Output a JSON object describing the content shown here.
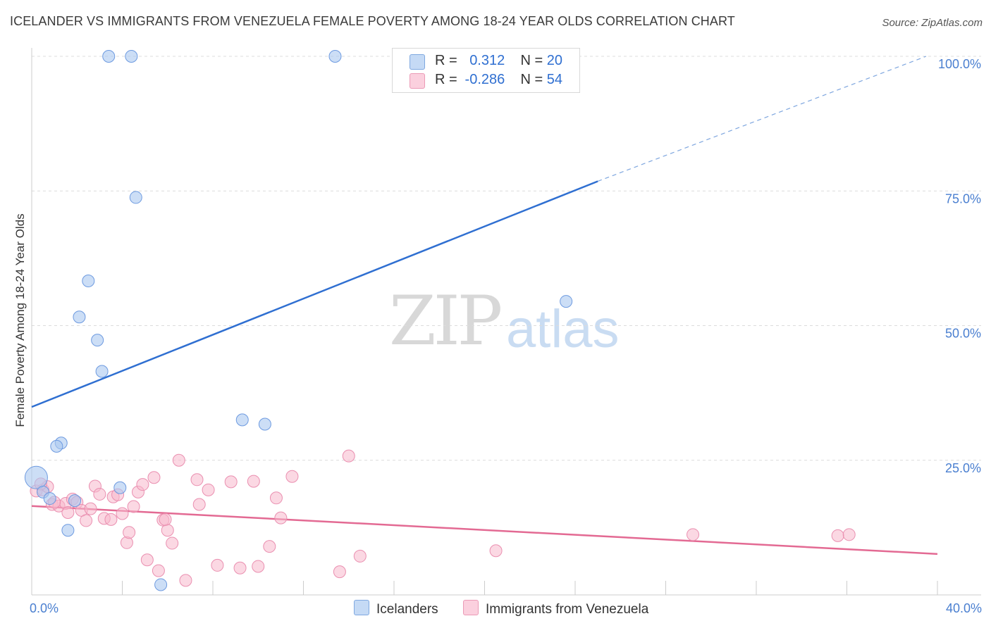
{
  "title": "ICELANDER VS IMMIGRANTS FROM VENEZUELA FEMALE POVERTY AMONG 18-24 YEAR OLDS CORRELATION CHART",
  "source": "Source: ZipAtlas.com",
  "watermark": {
    "zip": "ZIP",
    "atlas": "atlas"
  },
  "legend": {
    "r_label": "R =",
    "n_label": "N =",
    "series": [
      {
        "r": "0.312",
        "n": "20",
        "color": "#aac8f0"
      },
      {
        "r": "-0.286",
        "n": "54",
        "color": "#f7b8cc"
      }
    ]
  },
  "bottom_legend": {
    "items": [
      {
        "label": "Icelanders",
        "color": "#aac8f0"
      },
      {
        "label": "Immigrants from Venezuela",
        "color": "#f7b8cc"
      }
    ]
  },
  "chart_data": {
    "type": "scatter",
    "xlabel": "",
    "ylabel": "Female Poverty Among 18-24 Year Olds",
    "xlim": [
      0,
      40
    ],
    "ylim": [
      0,
      100
    ],
    "x_tick_labels": [
      "0.0%",
      "40.0%"
    ],
    "y_ticks": [
      25,
      50,
      75,
      100
    ],
    "y_tick_labels": [
      "25.0%",
      "50.0%",
      "75.0%",
      "100.0%"
    ],
    "grid": true,
    "series": [
      {
        "name": "Icelanders",
        "color": "#5b8fd8",
        "fill": "#aac8f0",
        "points": [
          [
            3.4,
            100
          ],
          [
            4.4,
            100
          ],
          [
            13.4,
            100
          ],
          [
            4.6,
            73.8
          ],
          [
            2.5,
            58.3
          ],
          [
            2.1,
            51.6
          ],
          [
            2.9,
            47.3
          ],
          [
            3.1,
            41.5
          ],
          [
            23.6,
            54.5
          ],
          [
            9.3,
            32.5
          ],
          [
            10.3,
            31.7
          ],
          [
            1.3,
            28.2
          ],
          [
            1.1,
            27.6
          ],
          [
            0.2,
            21.8
          ],
          [
            3.9,
            19.9
          ],
          [
            0.5,
            19.1
          ],
          [
            0.8,
            17.9
          ],
          [
            1.9,
            17.5
          ],
          [
            1.6,
            12.0
          ],
          [
            5.7,
            1.9
          ]
        ],
        "trend": {
          "x0": 0,
          "y0": 34.9,
          "x1": 25,
          "y1": 76.8,
          "x2": 39.5,
          "y2": 100
        }
      },
      {
        "name": "Immigrants from Venezuela",
        "color": "#e36a93",
        "fill": "#f7b8cc",
        "points": [
          [
            0.2,
            19.3
          ],
          [
            0.5,
            19.5
          ],
          [
            0.7,
            20.1
          ],
          [
            0.9,
            16.8
          ],
          [
            1.2,
            16.5
          ],
          [
            1.5,
            17.0
          ],
          [
            1.6,
            15.3
          ],
          [
            1.8,
            17.8
          ],
          [
            2.0,
            17.2
          ],
          [
            2.2,
            15.7
          ],
          [
            2.4,
            13.8
          ],
          [
            2.8,
            20.2
          ],
          [
            3.0,
            18.7
          ],
          [
            3.2,
            14.2
          ],
          [
            3.5,
            14.0
          ],
          [
            3.6,
            18.2
          ],
          [
            3.8,
            18.6
          ],
          [
            4.0,
            15.1
          ],
          [
            4.2,
            9.7
          ],
          [
            4.3,
            11.6
          ],
          [
            4.5,
            16.4
          ],
          [
            4.7,
            19.1
          ],
          [
            4.9,
            20.5
          ],
          [
            5.1,
            6.5
          ],
          [
            5.4,
            21.8
          ],
          [
            5.8,
            13.9
          ],
          [
            5.6,
            4.5
          ],
          [
            6.0,
            12.0
          ],
          [
            6.2,
            9.6
          ],
          [
            6.5,
            25.0
          ],
          [
            6.8,
            2.7
          ],
          [
            7.3,
            21.4
          ],
          [
            7.4,
            16.8
          ],
          [
            7.8,
            19.5
          ],
          [
            8.2,
            5.5
          ],
          [
            8.8,
            21.0
          ],
          [
            9.2,
            5.0
          ],
          [
            9.8,
            21.1
          ],
          [
            10.0,
            5.3
          ],
          [
            10.5,
            9.0
          ],
          [
            10.8,
            18.0
          ],
          [
            11.0,
            14.3
          ],
          [
            11.5,
            22.0
          ],
          [
            13.6,
            4.3
          ],
          [
            14.0,
            25.8
          ],
          [
            14.5,
            7.2
          ],
          [
            20.5,
            8.2
          ],
          [
            29.2,
            11.2
          ],
          [
            35.6,
            11.0
          ],
          [
            36.1,
            11.2
          ],
          [
            0.4,
            20.6
          ],
          [
            1.0,
            17.2
          ],
          [
            2.6,
            16.0
          ],
          [
            5.9,
            14.0
          ]
        ],
        "trend": {
          "x0": 0,
          "y0": 16.5,
          "x1": 40,
          "y1": 7.6
        }
      }
    ]
  }
}
